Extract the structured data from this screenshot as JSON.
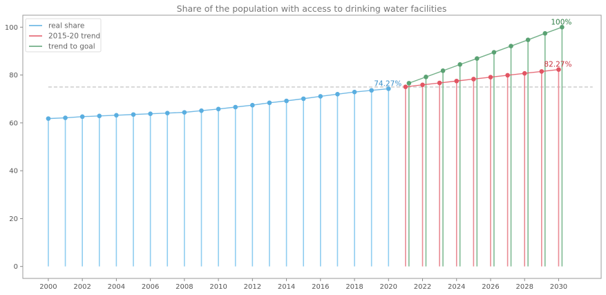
{
  "chart_data": {
    "type": "line",
    "title": "Share of the population with access to drinking water facilities",
    "xlabel": "",
    "ylabel": "",
    "xlim": [
      1998.5,
      2032.5
    ],
    "ylim": [
      -5,
      105
    ],
    "xticks": [
      2000,
      2002,
      2004,
      2006,
      2008,
      2010,
      2012,
      2014,
      2016,
      2018,
      2020,
      2022,
      2024,
      2026,
      2028,
      2030
    ],
    "yticks": [
      0,
      20,
      40,
      60,
      80,
      100
    ],
    "grid": false,
    "legend_position": "top-left",
    "reference_line": {
      "y": 75,
      "x_range": [
        2000,
        2032
      ],
      "style": "dashed",
      "color": "#c8c8c8"
    },
    "series": [
      {
        "name": "real share",
        "color": "#5aaee0",
        "stem_color": "#8ecdf0",
        "x": [
          2000,
          2001,
          2002,
          2003,
          2004,
          2005,
          2006,
          2007,
          2008,
          2009,
          2010,
          2011,
          2012,
          2013,
          2014,
          2015,
          2016,
          2017,
          2018,
          2019,
          2020
        ],
        "y": [
          61.8,
          62.1,
          62.6,
          62.9,
          63.2,
          63.5,
          63.8,
          64.1,
          64.4,
          65.1,
          65.8,
          66.6,
          67.4,
          68.4,
          69.2,
          70.1,
          71.1,
          72.0,
          72.9,
          73.6,
          74.27
        ]
      },
      {
        "name": "2015-20 trend",
        "color": "#e25563",
        "stem_color": "#e98a93",
        "x": [
          2021,
          2022,
          2023,
          2024,
          2025,
          2026,
          2027,
          2028,
          2029,
          2030
        ],
        "y": [
          75.07,
          75.9,
          76.7,
          77.5,
          78.3,
          79.1,
          79.9,
          80.7,
          81.5,
          82.27
        ]
      },
      {
        "name": "trend to goal",
        "color": "#5aa273",
        "stem_color": "#7fba92",
        "x": [
          2021.2,
          2022.2,
          2023.2,
          2024.2,
          2025.2,
          2026.2,
          2027.2,
          2028.2,
          2029.2,
          2030.2
        ],
        "y": [
          76.6,
          79.2,
          81.8,
          84.4,
          86.9,
          89.5,
          92.1,
          94.7,
          97.4,
          100
        ]
      }
    ],
    "annotations": [
      {
        "text": "74.27%",
        "x": 2020,
        "y": 74.27,
        "color": "#3a8fc9"
      },
      {
        "text": "82.27%",
        "x": 2030,
        "y": 82.27,
        "color": "#c8323f"
      },
      {
        "text": "100%",
        "x": 2030.2,
        "y": 100,
        "color": "#2e7d44"
      }
    ]
  }
}
